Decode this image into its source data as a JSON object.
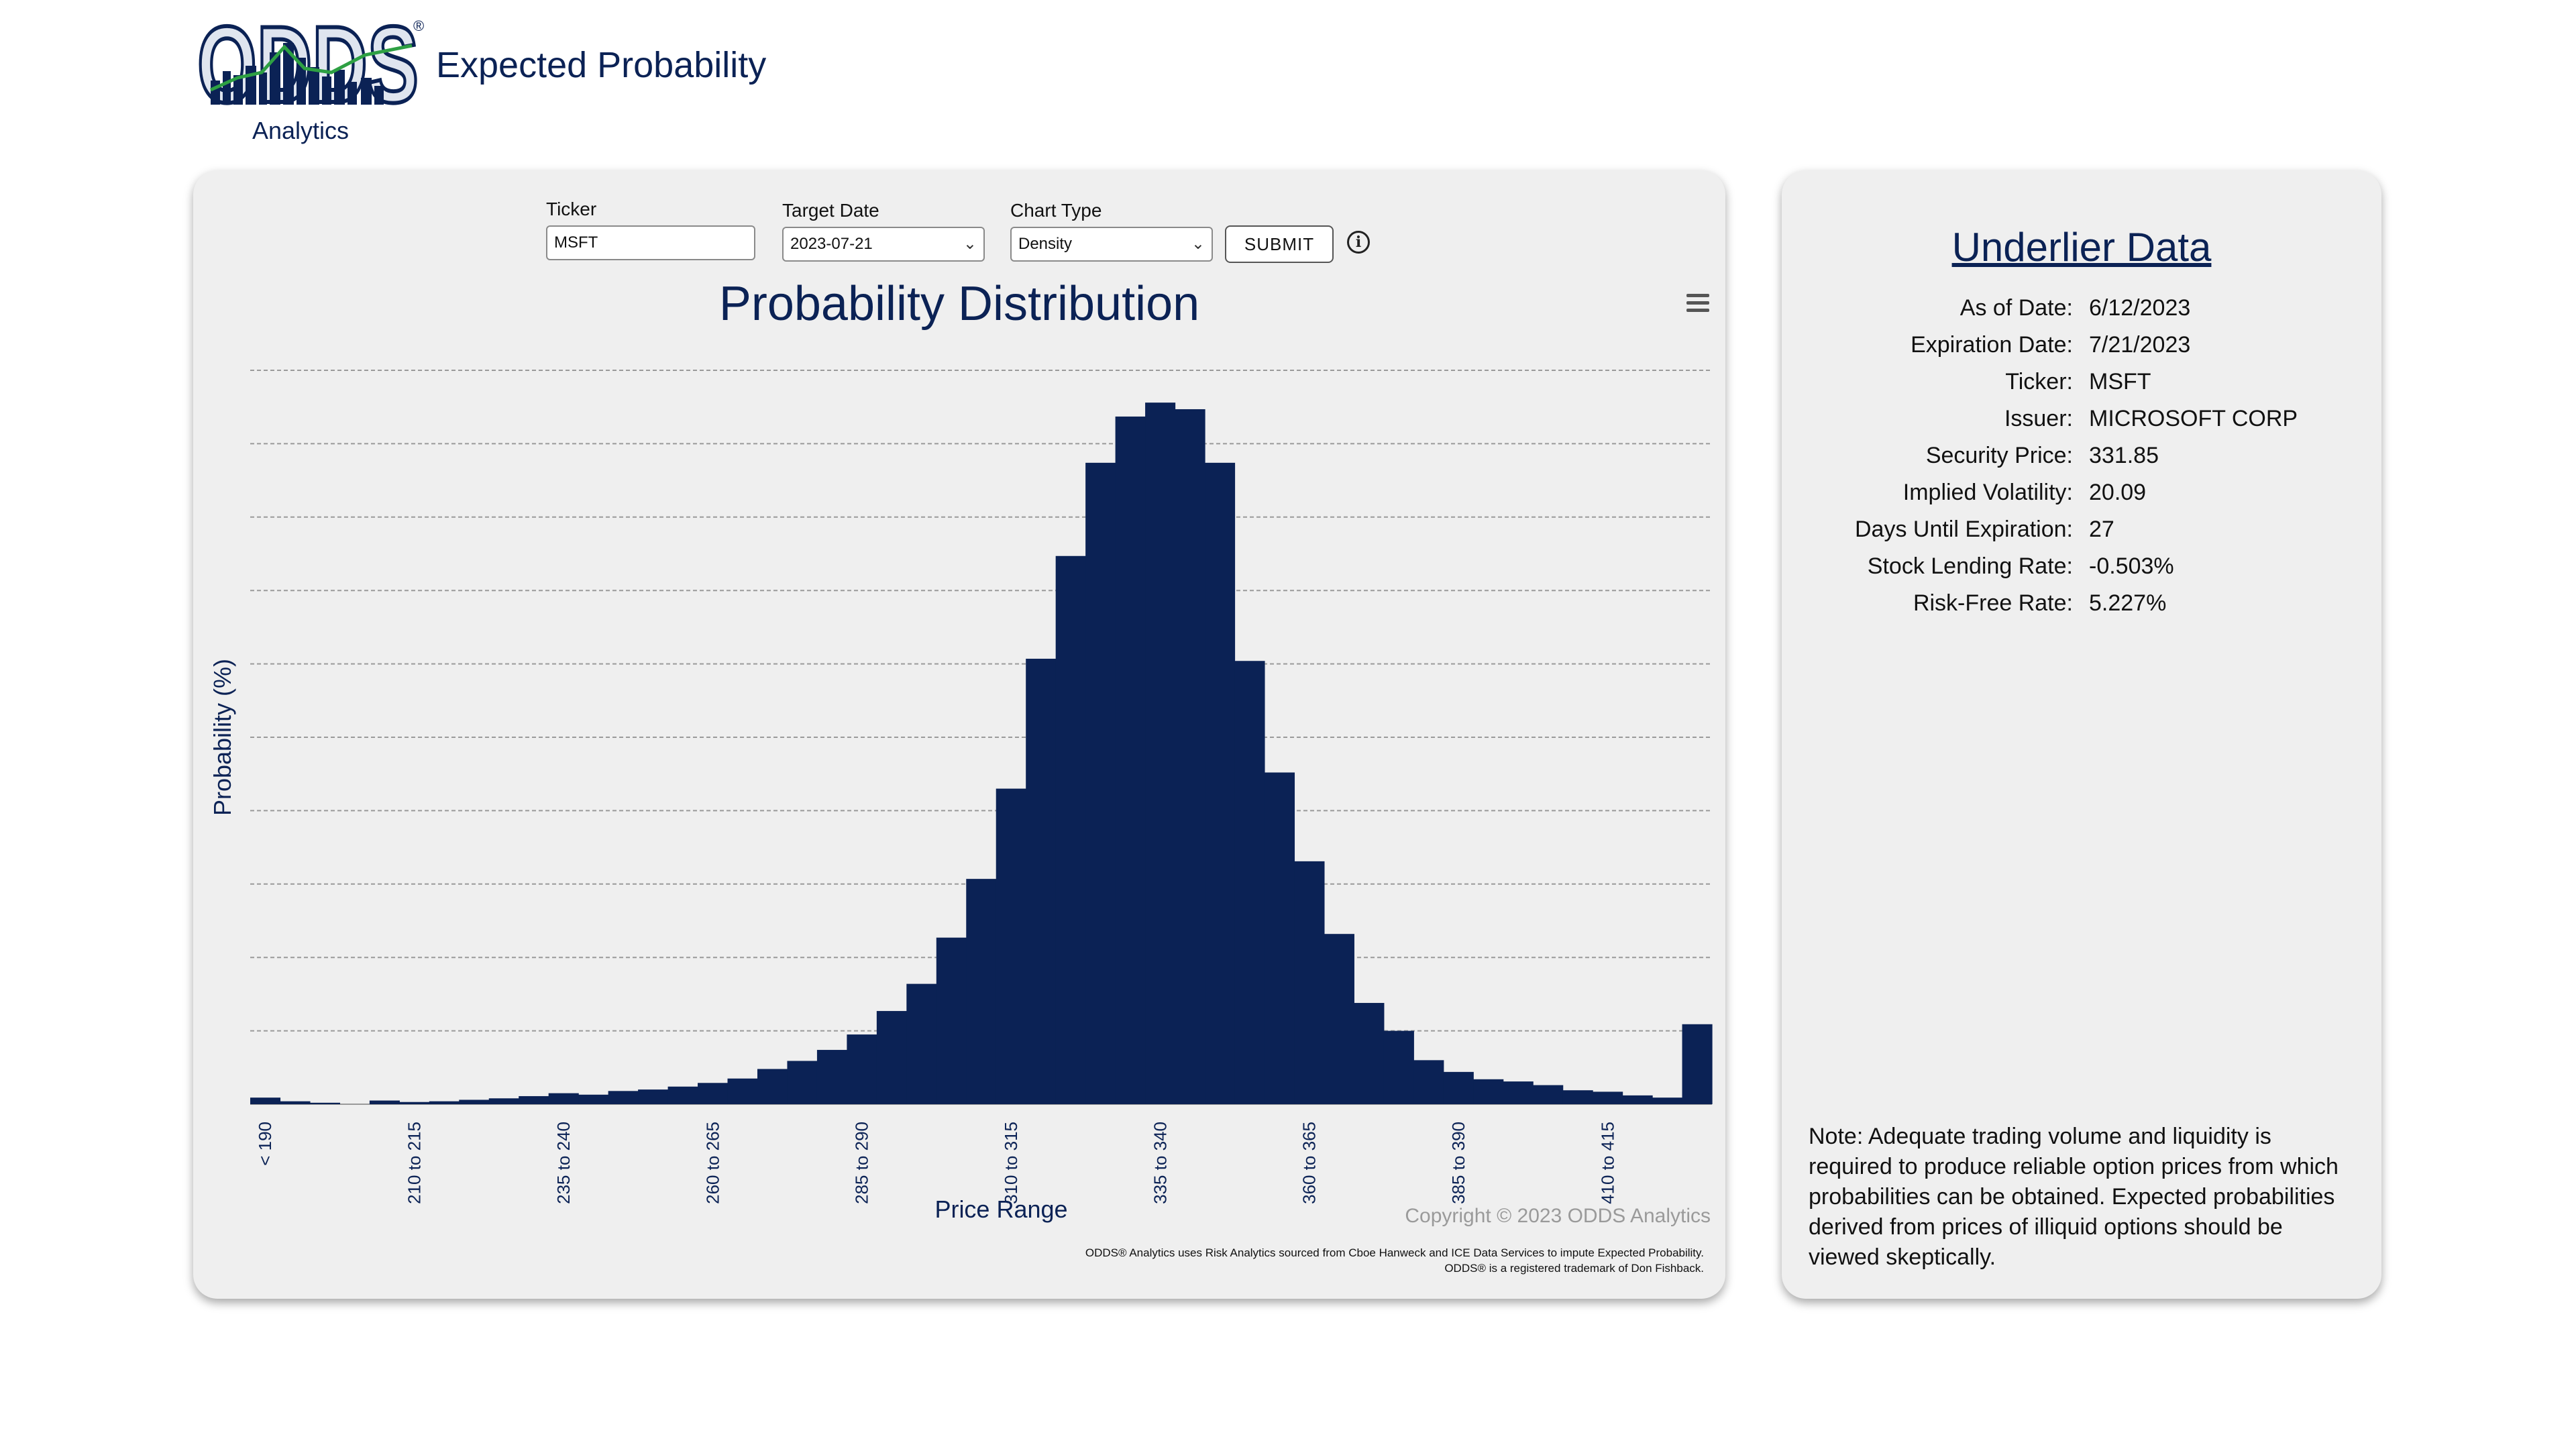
{
  "header": {
    "logo_text": "ODDS",
    "logo_subtitle": "Analytics",
    "registered_mark": "®",
    "title": "Expected Probability"
  },
  "controls": {
    "ticker_label": "Ticker",
    "ticker_value": "MSFT",
    "target_date_label": "Target Date",
    "target_date_value": "2023-07-21",
    "chart_type_label": "Chart Type",
    "chart_type_value": "Density",
    "submit_label": "SUBMIT",
    "info_glyph": "i",
    "chevron_glyph": "⌄"
  },
  "chart_data": {
    "type": "bar",
    "title": "Probability Distribution",
    "xlabel": "Price Range",
    "ylabel": "Probability (%)",
    "grid": true,
    "legend": "none",
    "bar_color": "#0b2255",
    "tick_labels": [
      "< 190",
      "210 to 215",
      "235 to 240",
      "260 to 265",
      "285 to 290",
      "310 to 315",
      "335 to 340",
      "360 to 365",
      "385 to 390",
      "410 to 415"
    ],
    "ylim": [
      0,
      10
    ],
    "values": [
      0.09,
      0.04,
      0.02,
      0.0,
      0.05,
      0.03,
      0.04,
      0.06,
      0.08,
      0.11,
      0.15,
      0.13,
      0.18,
      0.2,
      0.24,
      0.29,
      0.35,
      0.48,
      0.59,
      0.74,
      0.95,
      1.27,
      1.64,
      2.27,
      3.07,
      4.3,
      6.07,
      7.47,
      8.74,
      9.37,
      9.56,
      9.47,
      8.74,
      6.04,
      4.52,
      3.31,
      2.32,
      1.38,
      1.0,
      0.6,
      0.44,
      0.34,
      0.31,
      0.26,
      0.19,
      0.17,
      0.12,
      0.09,
      1.09
    ]
  },
  "copyright": "Copyright © 2023 ODDS Analytics",
  "footnotes": [
    "ODDS® Analytics uses Risk Analytics sourced from Cboe Hanweck and ICE Data Services to impute Expected Probability.",
    "ODDS® is a registered trademark of Don Fishback."
  ],
  "underlier": {
    "title": "Underlier Data",
    "rows": [
      {
        "label": "As of Date:",
        "value": "6/12/2023"
      },
      {
        "label": "Expiration Date:",
        "value": "7/21/2023"
      },
      {
        "label": "Ticker:",
        "value": "MSFT"
      },
      {
        "label": "Issuer:",
        "value": "MICROSOFT CORP"
      },
      {
        "label": "Security Price:",
        "value": "331.85"
      },
      {
        "label": "Implied Volatility:",
        "value": "20.09"
      },
      {
        "label": "Days Until Expiration:",
        "value": "27"
      },
      {
        "label": "Stock Lending Rate:",
        "value": "-0.503%"
      },
      {
        "label": "Risk-Free Rate:",
        "value": "5.227%"
      }
    ],
    "note": "Note: Adequate trading volume and liquidity is required to produce reliable option prices from which probabilities can be obtained. Expected probabilities derived from prices of illiquid options should be viewed skeptically."
  }
}
